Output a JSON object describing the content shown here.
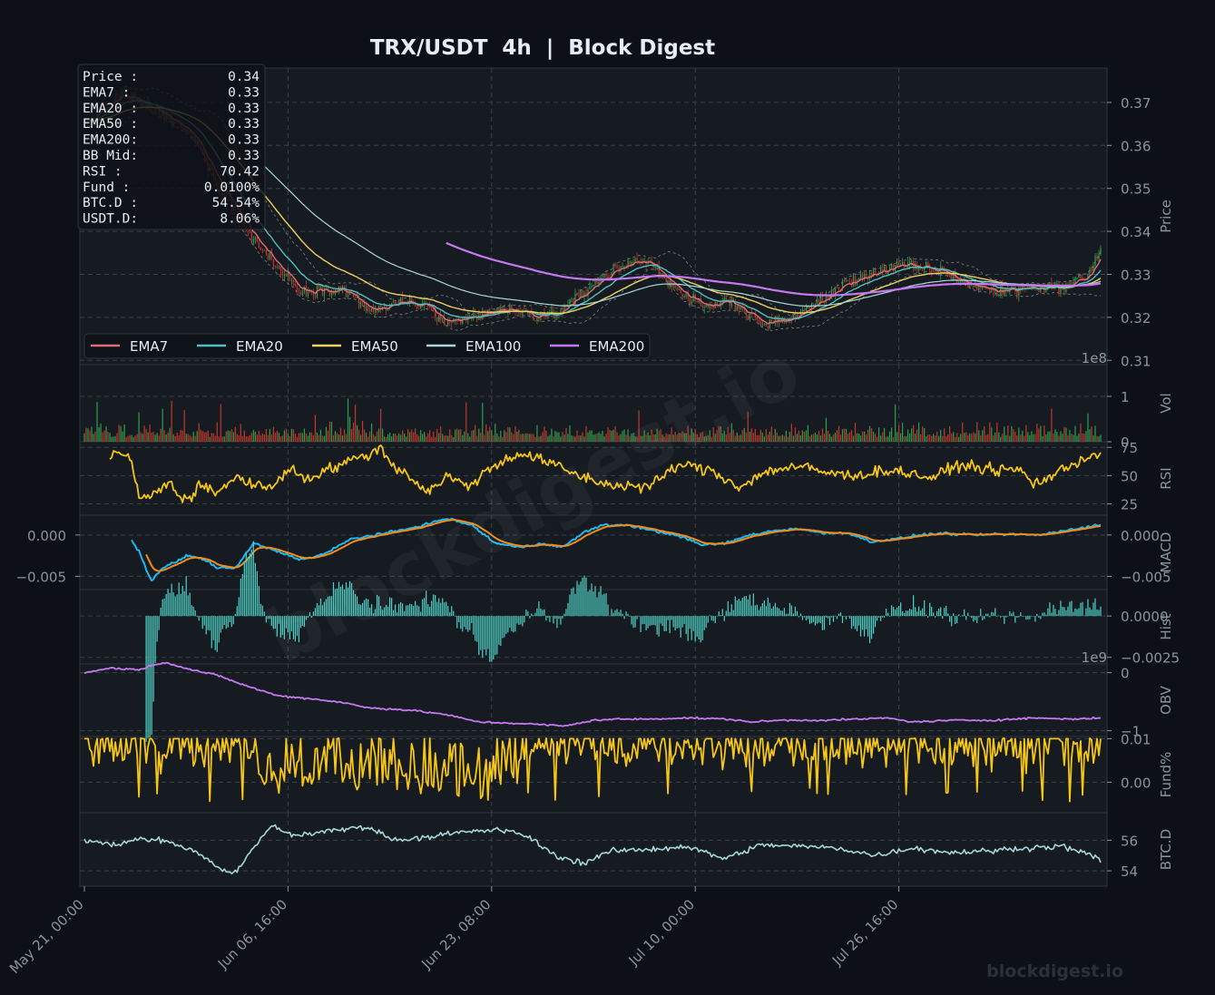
{
  "chart_data": {
    "type": "line",
    "title": "TRX/USDT  4h  |  Block Digest",
    "watermark": "blockdigest.io",
    "footer": "blockdigest.io",
    "x_tick_labels": [
      "May 21, 00:00",
      "Jun 06, 16:00",
      "Jun 23, 08:00",
      "Jul 10, 00:00",
      "Jul 26, 16:00"
    ],
    "info_box": [
      {
        "label": "Price :",
        "value": "0.34"
      },
      {
        "label": "EMA7  :",
        "value": "0.33"
      },
      {
        "label": "EMA20 :",
        "value": "0.33"
      },
      {
        "label": "EMA50 :",
        "value": "0.33"
      },
      {
        "label": "EMA200:",
        "value": "0.33"
      },
      {
        "label": "BB Mid:",
        "value": "0.33"
      },
      {
        "label": "RSI   :",
        "value": "70.42"
      },
      {
        "label": "Fund  :",
        "value": "0.0100%"
      },
      {
        "label": "BTC.D :",
        "value": "54.54%"
      },
      {
        "label": "USDT.D:",
        "value": "8.06%"
      }
    ],
    "legend": [
      {
        "name": "EMA7",
        "color": "#e06c75"
      },
      {
        "name": "EMA20",
        "color": "#4fc1c1"
      },
      {
        "name": "EMA50",
        "color": "#f0d060"
      },
      {
        "name": "EMA100",
        "color": "#a8d8d8"
      },
      {
        "name": "EMA200",
        "color": "#c678f0"
      }
    ],
    "colors": {
      "up": "#2e9e4e",
      "down": "#c0392b",
      "rsi": "#f5c518",
      "macd": "#1eb8f0",
      "signal": "#f28c18",
      "hist": "#4fd1c5",
      "obv": "#c678f0",
      "fund": "#f5c518",
      "btcd": "#a8d8d8",
      "bb": "#7d8590"
    },
    "panels": [
      {
        "key": "price",
        "ylabel": "Price",
        "ylim": [
          0.309,
          0.378
        ],
        "ticks": [
          "0.31",
          "0.32",
          "0.33",
          "0.34",
          "0.35",
          "0.36",
          "0.37"
        ],
        "tick_values": [
          0.31,
          0.32,
          0.33,
          0.34,
          0.35,
          0.36,
          0.37
        ]
      },
      {
        "key": "vol",
        "ylabel": "Vol",
        "offset": "1e8",
        "ylim": [
          0,
          1.7
        ],
        "ticks": [
          "0",
          "1"
        ],
        "tick_values": [
          0,
          1
        ]
      },
      {
        "key": "rsi",
        "ylabel": "RSI",
        "ylim": [
          15,
          80
        ],
        "ticks": [
          "25",
          "50",
          "75"
        ],
        "tick_values": [
          25,
          50,
          75
        ]
      },
      {
        "key": "macd",
        "ylabel": "MACD",
        "ylim": [
          -0.0066,
          0.0024
        ],
        "ticks": [
          "0.000",
          "−0.005"
        ],
        "tick_values": [
          0,
          -0.005
        ],
        "left_ticks": [
          "0.000",
          "−0.005"
        ]
      },
      {
        "key": "hist",
        "ylabel": "Hist",
        "ylim": [
          -0.0029,
          0.0016
        ],
        "ticks": [
          "0.0000",
          "−0.0025"
        ],
        "tick_values": [
          0,
          -0.0025
        ]
      },
      {
        "key": "obv",
        "ylabel": "OBV",
        "offset": "1e9",
        "ylim": [
          -1.1,
          0.15
        ],
        "ticks": [
          "0",
          "−1"
        ],
        "tick_values": [
          0,
          -1
        ]
      },
      {
        "key": "fund",
        "ylabel": "Fund%",
        "ylim": [
          -0.007,
          0.0105
        ],
        "ticks": [
          "0.01",
          "0.00"
        ],
        "tick_values": [
          0.01,
          0.0
        ]
      },
      {
        "key": "btcd",
        "ylabel": "BTC.D",
        "ylim": [
          53.0,
          57.8
        ],
        "ticks": [
          "56",
          "54"
        ],
        "tick_values": [
          56,
          54
        ]
      }
    ],
    "n_bars": 560,
    "price_anchors": [
      [
        0,
        0.365
      ],
      [
        20,
        0.372
      ],
      [
        40,
        0.368
      ],
      [
        60,
        0.362
      ],
      [
        75,
        0.35
      ],
      [
        90,
        0.34
      ],
      [
        105,
        0.332
      ],
      [
        120,
        0.326
      ],
      [
        140,
        0.327
      ],
      [
        160,
        0.321
      ],
      [
        175,
        0.324
      ],
      [
        190,
        0.322
      ],
      [
        200,
        0.318
      ],
      [
        215,
        0.32
      ],
      [
        230,
        0.322
      ],
      [
        250,
        0.32
      ],
      [
        265,
        0.322
      ],
      [
        280,
        0.328
      ],
      [
        300,
        0.333
      ],
      [
        310,
        0.333
      ],
      [
        325,
        0.327
      ],
      [
        340,
        0.322
      ],
      [
        355,
        0.324
      ],
      [
        375,
        0.318
      ],
      [
        395,
        0.321
      ],
      [
        415,
        0.327
      ],
      [
        430,
        0.33
      ],
      [
        450,
        0.332
      ],
      [
        470,
        0.331
      ],
      [
        485,
        0.328
      ],
      [
        500,
        0.326
      ],
      [
        520,
        0.327
      ],
      [
        540,
        0.327
      ],
      [
        552,
        0.33
      ],
      [
        559,
        0.336
      ]
    ],
    "rsi_anchors": [
      [
        0,
        42
      ],
      [
        15,
        58
      ],
      [
        30,
        73
      ],
      [
        45,
        65
      ],
      [
        50,
        48
      ],
      [
        55,
        30
      ],
      [
        70,
        33
      ],
      [
        85,
        45
      ],
      [
        95,
        30
      ],
      [
        105,
        30
      ],
      [
        115,
        42
      ],
      [
        125,
        38
      ],
      [
        130,
        32
      ],
      [
        140,
        42
      ],
      [
        150,
        50
      ],
      [
        165,
        42
      ],
      [
        180,
        40
      ],
      [
        195,
        47
      ],
      [
        205,
        57
      ],
      [
        220,
        47
      ],
      [
        240,
        55
      ],
      [
        270,
        65
      ],
      [
        295,
        74
      ],
      [
        305,
        60
      ],
      [
        325,
        48
      ],
      [
        340,
        35
      ],
      [
        360,
        50
      ],
      [
        380,
        40
      ],
      [
        400,
        55
      ],
      [
        430,
        70
      ],
      [
        460,
        62
      ],
      [
        490,
        50
      ],
      [
        520,
        42
      ],
      [
        560,
        40
      ],
      [
        590,
        60
      ],
      [
        620,
        55
      ],
      [
        650,
        40
      ],
      [
        680,
        55
      ],
      [
        710,
        58
      ],
      [
        740,
        52
      ],
      [
        760,
        50
      ],
      [
        800,
        55
      ],
      [
        840,
        48
      ],
      [
        870,
        60
      ],
      [
        900,
        55
      ],
      [
        930,
        55
      ],
      [
        940,
        42
      ],
      [
        960,
        50
      ],
      [
        990,
        65
      ],
      [
        1008,
        70
      ]
    ],
    "macd_anchors": [
      [
        0,
        0.0013
      ],
      [
        15,
        0.002
      ],
      [
        30,
        0.0015
      ],
      [
        45,
        -0.002
      ],
      [
        55,
        -0.0055
      ],
      [
        65,
        -0.004
      ],
      [
        85,
        -0.0025
      ],
      [
        100,
        -0.003
      ],
      [
        110,
        -0.004
      ],
      [
        125,
        -0.004
      ],
      [
        140,
        -0.001
      ],
      [
        160,
        -0.002
      ],
      [
        180,
        -0.003
      ],
      [
        200,
        -0.0022
      ],
      [
        220,
        -0.0005
      ],
      [
        240,
        0.0
      ],
      [
        260,
        0.0005
      ],
      [
        280,
        0.0012
      ],
      [
        300,
        0.002
      ],
      [
        320,
        0.0012
      ],
      [
        340,
        -0.001
      ],
      [
        360,
        -0.0015
      ],
      [
        380,
        -0.001
      ],
      [
        395,
        -0.0015
      ],
      [
        415,
        0.0005
      ],
      [
        430,
        0.0012
      ],
      [
        450,
        0.0012
      ],
      [
        470,
        0.0005
      ],
      [
        490,
        0.0
      ],
      [
        510,
        -0.0012
      ],
      [
        530,
        -0.001
      ],
      [
        550,
        0.0
      ],
      [
        570,
        0.0005
      ],
      [
        590,
        0.0008
      ],
      [
        610,
        0.0002
      ],
      [
        630,
        0.0003
      ],
      [
        650,
        -0.0008
      ],
      [
        670,
        -0.0005
      ],
      [
        690,
        0.0
      ],
      [
        710,
        0.0002
      ],
      [
        730,
        0.0
      ],
      [
        760,
        0.0001
      ],
      [
        790,
        0.0
      ],
      [
        820,
        0.0008
      ],
      [
        840,
        0.0012
      ]
    ],
    "obv_anchors": [
      [
        0,
        0.0
      ],
      [
        20,
        0.08
      ],
      [
        40,
        0.05
      ],
      [
        60,
        0.18
      ],
      [
        80,
        0.05
      ],
      [
        100,
        -0.05
      ],
      [
        120,
        -0.22
      ],
      [
        145,
        -0.4
      ],
      [
        170,
        -0.45
      ],
      [
        195,
        -0.52
      ],
      [
        210,
        -0.6
      ],
      [
        245,
        -0.65
      ],
      [
        270,
        -0.72
      ],
      [
        285,
        -0.8
      ],
      [
        295,
        -0.85
      ],
      [
        330,
        -0.88
      ],
      [
        360,
        -0.92
      ],
      [
        380,
        -0.82
      ],
      [
        400,
        -0.8
      ],
      [
        420,
        -0.8
      ],
      [
        450,
        -0.78
      ],
      [
        480,
        -0.8
      ],
      [
        500,
        -0.85
      ],
      [
        520,
        -0.82
      ],
      [
        550,
        -0.82
      ],
      [
        580,
        -0.8
      ],
      [
        600,
        -0.78
      ],
      [
        620,
        -0.85
      ],
      [
        650,
        -0.82
      ],
      [
        680,
        -0.82
      ],
      [
        710,
        -0.78
      ],
      [
        740,
        -0.8
      ],
      [
        760,
        -0.78
      ]
    ],
    "btcd_anchors": [
      [
        0,
        56.0
      ],
      [
        15,
        55.7
      ],
      [
        30,
        56.1
      ],
      [
        45,
        55.9
      ],
      [
        60,
        55.2
      ],
      [
        70,
        54.3
      ],
      [
        80,
        53.8
      ],
      [
        90,
        55.5
      ],
      [
        100,
        57.0
      ],
      [
        110,
        56.3
      ],
      [
        130,
        56.6
      ],
      [
        150,
        56.9
      ],
      [
        165,
        56.0
      ],
      [
        180,
        56.2
      ],
      [
        200,
        56.5
      ],
      [
        220,
        56.7
      ],
      [
        235,
        56.3
      ],
      [
        250,
        55.0
      ],
      [
        265,
        54.5
      ],
      [
        280,
        55.3
      ],
      [
        300,
        55.4
      ],
      [
        320,
        55.6
      ],
      [
        340,
        54.8
      ],
      [
        360,
        55.7
      ],
      [
        380,
        55.6
      ],
      [
        400,
        55.5
      ],
      [
        420,
        55.0
      ],
      [
        440,
        55.5
      ],
      [
        460,
        55.2
      ],
      [
        480,
        55.3
      ],
      [
        500,
        55.5
      ],
      [
        520,
        55.6
      ],
      [
        540,
        54.8
      ]
    ],
    "fund_pattern": "oscillating between 0.000 and 0.010",
    "fund_last": 0.01
  }
}
